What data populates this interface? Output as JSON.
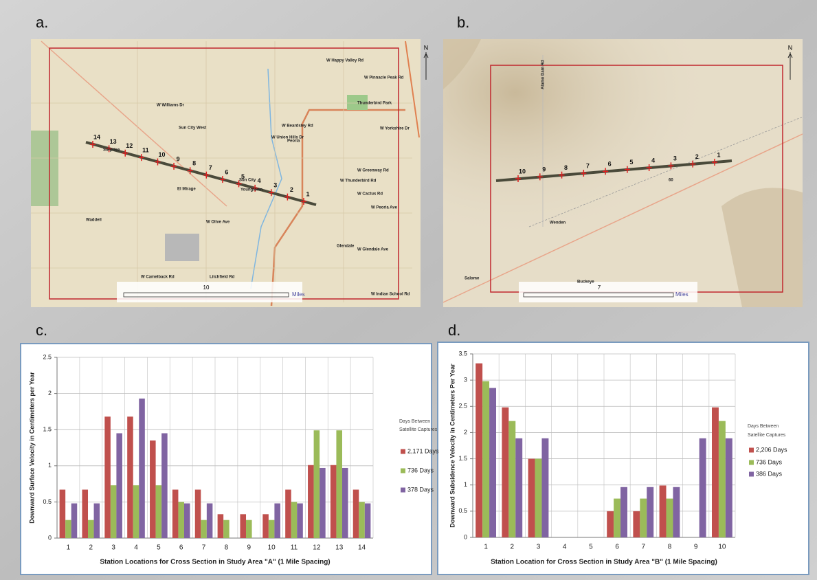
{
  "panels": [
    "a.",
    "b.",
    "c.",
    "d."
  ],
  "maps": [
    {
      "stations": [
        "14",
        "13",
        "12",
        "11",
        "10",
        "9",
        "8",
        "7",
        "6",
        "5",
        "4",
        "3",
        "2",
        "1"
      ],
      "scale_value": "10",
      "scale_unit": "Miles",
      "north": "N",
      "places": [
        "W Happy Valley Rd",
        "W Pinnacle Peak Rd",
        "Thunderbird Park",
        "W Williams Dr",
        "Sun City West",
        "W Beardsley Rd",
        "W Union Hills Dr",
        "Peoria",
        "W Yorkshire Dr",
        "W Greenway Rd",
        "W Thunderbird Rd",
        "W Cactus Rd",
        "W Peoria Ave",
        "Surprise",
        "El Mirage",
        "Sun City",
        "Youngtown",
        "Waddell",
        "W Olive Ave",
        "Glendale",
        "W Glendale Ave",
        "W Camelback Rd",
        "Litchfield Rd",
        "W Indian School Rd"
      ]
    },
    {
      "stations": [
        "10",
        "9",
        "8",
        "7",
        "6",
        "5",
        "4",
        "3",
        "2",
        "1"
      ],
      "scale_value": "7",
      "scale_unit": "Miles",
      "north": "N",
      "places": [
        "Alamo Dam Rd",
        "Wenden",
        "Salome",
        "Buckeye",
        "60"
      ]
    }
  ],
  "chart_data": [
    {
      "type": "bar",
      "y_label": "Downward Surface Velocity in Centimeters per Year",
      "x_label": "Station Locations for Cross Section in Study Area \"A\" (1 Mile Spacing)",
      "legend_title": [
        "Days Between",
        "Satellite Captures"
      ],
      "categories": [
        1,
        2,
        3,
        4,
        5,
        6,
        7,
        8,
        9,
        10,
        11,
        12,
        13,
        14
      ],
      "series": [
        {
          "name": "2,171 Days",
          "color": "#c0504d",
          "values": [
            0.67,
            0.67,
            1.68,
            1.68,
            1.35,
            0.67,
            0.67,
            0.33,
            0.33,
            0.33,
            0.67,
            1.01,
            1.01,
            0.67
          ]
        },
        {
          "name": "736 Days",
          "color": "#9bbb59",
          "values": [
            0.25,
            0.25,
            0.73,
            0.73,
            0.73,
            0.5,
            0.25,
            0.25,
            0.25,
            0.25,
            0.5,
            1.49,
            1.49,
            0.5
          ]
        },
        {
          "name": "378 Days",
          "color": "#8064a2",
          "values": [
            0.48,
            0.48,
            1.45,
            1.93,
            1.45,
            0.48,
            0.48,
            null,
            null,
            0.48,
            0.48,
            0.97,
            0.97,
            0.48
          ]
        }
      ],
      "ylim": [
        0,
        2.5
      ],
      "yticks": [
        0,
        0.5,
        1,
        1.5,
        2,
        2.5
      ],
      "grid": true
    },
    {
      "type": "bar",
      "y_label": "Downward Subsidence Velocity in Centimeters Per Year",
      "x_label": "Station Location for Cross Section in Study Area \"B\" (1 Mile Spacing)",
      "legend_title": [
        "Days Between",
        "Satellite Captures"
      ],
      "categories": [
        1,
        2,
        3,
        4,
        5,
        6,
        7,
        8,
        9,
        10
      ],
      "series": [
        {
          "name": "2,206 Days",
          "color": "#c0504d",
          "values": [
            3.32,
            2.48,
            1.5,
            null,
            null,
            0.5,
            0.5,
            0.99,
            null,
            2.48
          ]
        },
        {
          "name": "736 Days",
          "color": "#9bbb59",
          "values": [
            2.98,
            2.22,
            1.5,
            null,
            null,
            0.74,
            0.74,
            0.74,
            null,
            2.22
          ]
        },
        {
          "name": "386 Days",
          "color": "#8064a2",
          "values": [
            2.85,
            1.89,
            1.89,
            null,
            null,
            0.96,
            0.96,
            0.96,
            1.89,
            1.89
          ]
        }
      ],
      "ylim": [
        0,
        3.5
      ],
      "yticks": [
        0,
        0.5,
        1,
        1.5,
        2,
        2.5,
        3,
        3.5
      ],
      "grid": true
    }
  ]
}
